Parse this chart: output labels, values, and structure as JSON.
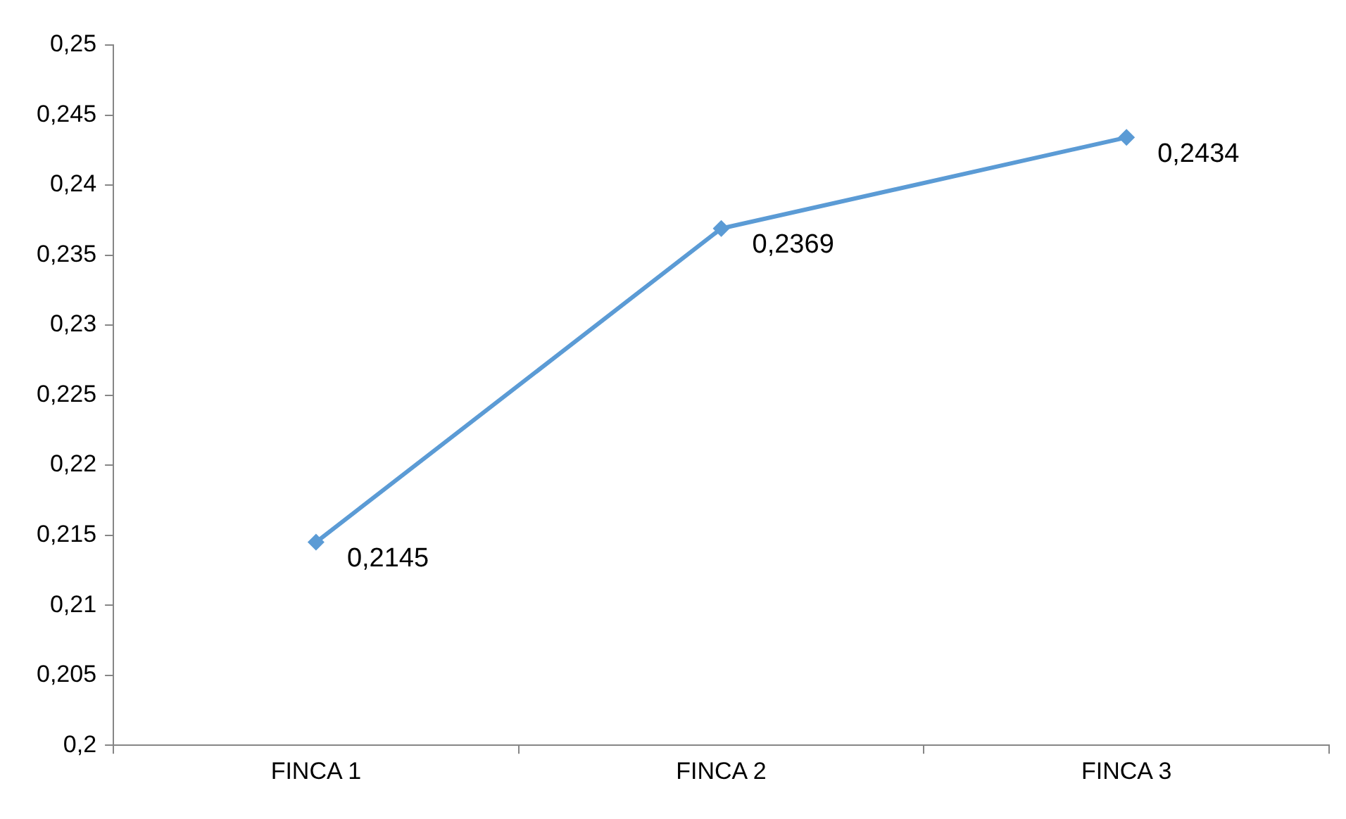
{
  "chart_data": {
    "type": "line",
    "categories": [
      "FINCA 1",
      "FINCA 2",
      "FINCA 3"
    ],
    "series": [
      {
        "color": "#5b9bd5",
        "values": [
          0.2145,
          0.2369,
          0.2434
        ],
        "value_labels": [
          "0,2145",
          "0,2369",
          "0,2434"
        ]
      }
    ],
    "ylim": [
      0.2,
      0.25
    ],
    "yticks": [
      {
        "value": 0.2,
        "label": "0,2"
      },
      {
        "value": 0.205,
        "label": "0,205"
      },
      {
        "value": 0.21,
        "label": "0,21"
      },
      {
        "value": 0.215,
        "label": "0,215"
      },
      {
        "value": 0.22,
        "label": "0,22"
      },
      {
        "value": 0.225,
        "label": "0,225"
      },
      {
        "value": 0.23,
        "label": "0,23"
      },
      {
        "value": 0.235,
        "label": "0,235"
      },
      {
        "value": 0.24,
        "label": "0,24"
      },
      {
        "value": 0.245,
        "label": "0,245"
      },
      {
        "value": 0.25,
        "label": "0,25"
      }
    ],
    "marker": "diamond",
    "line_style": "solid",
    "grid": false,
    "legend": false
  }
}
